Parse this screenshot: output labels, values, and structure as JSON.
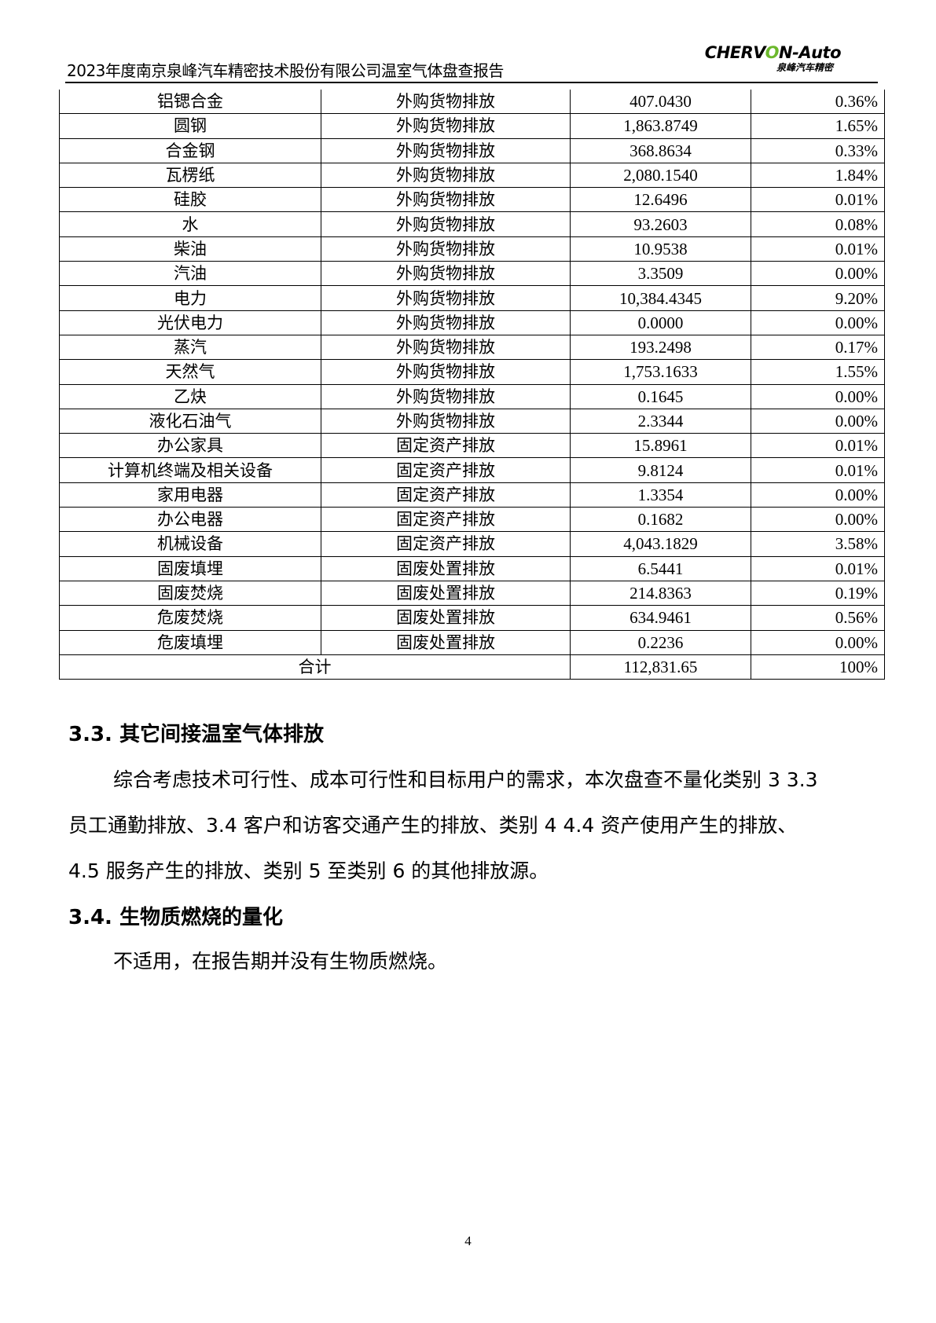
{
  "header": {
    "title": "2023年度南京泉峰汽车精密技术股份有限公司温室气体盘查报告",
    "logo_text": "CHERVON-Auto",
    "logo_subtext": "泉峰汽车精密"
  },
  "table": {
    "rows": [
      [
        "铝锶合金",
        "外购货物排放",
        "407.0430",
        "0.36%"
      ],
      [
        "圆钢",
        "外购货物排放",
        "1,863.8749",
        "1.65%"
      ],
      [
        "合金钢",
        "外购货物排放",
        "368.8634",
        "0.33%"
      ],
      [
        "瓦楞纸",
        "外购货物排放",
        "2,080.1540",
        "1.84%"
      ],
      [
        "硅胶",
        "外购货物排放",
        "12.6496",
        "0.01%"
      ],
      [
        "水",
        "外购货物排放",
        "93.2603",
        "0.08%"
      ],
      [
        "柴油",
        "外购货物排放",
        "10.9538",
        "0.01%"
      ],
      [
        "汽油",
        "外购货物排放",
        "3.3509",
        "0.00%"
      ],
      [
        "电力",
        "外购货物排放",
        "10,384.4345",
        "9.20%"
      ],
      [
        "光伏电力",
        "外购货物排放",
        "0.0000",
        "0.00%"
      ],
      [
        "蒸汽",
        "外购货物排放",
        "193.2498",
        "0.17%"
      ],
      [
        "天然气",
        "外购货物排放",
        "1,753.1633",
        "1.55%"
      ],
      [
        "乙炔",
        "外购货物排放",
        "0.1645",
        "0.00%"
      ],
      [
        "液化石油气",
        "外购货物排放",
        "2.3344",
        "0.00%"
      ],
      [
        "办公家具",
        "固定资产排放",
        "15.8961",
        "0.01%"
      ],
      [
        "计算机终端及相关设备",
        "固定资产排放",
        "9.8124",
        "0.01%"
      ],
      [
        "家用电器",
        "固定资产排放",
        "1.3354",
        "0.00%"
      ],
      [
        "办公电器",
        "固定资产排放",
        "0.1682",
        "0.00%"
      ],
      [
        "机械设备",
        "固定资产排放",
        "4,043.1829",
        "3.58%"
      ],
      [
        "固废填埋",
        "固废处置排放",
        "6.5441",
        "0.01%"
      ],
      [
        "固废焚烧",
        "固废处置排放",
        "214.8363",
        "0.19%"
      ],
      [
        "危废焚烧",
        "固废处置排放",
        "634.9461",
        "0.56%"
      ],
      [
        "危废填埋",
        "固废处置排放",
        "0.2236",
        "0.00%"
      ]
    ],
    "total": {
      "label": "合计",
      "value": "112,831.65",
      "percent": "100%"
    }
  },
  "sections": [
    {
      "heading": "3.3. 其它间接温室气体排放",
      "lines": [
        "综合考虑技术可行性、成本可行性和目标用户的需求，本次盘查不量化类别 3 3.3",
        "员工通勤排放、3.4 客户和访客交通产生的排放、类别 4  4.4 资产使用产生的排放、",
        "4.5 服务产生的排放、类别 5 至类别 6 的其他排放源。"
      ]
    },
    {
      "heading": "3.4. 生物质燃烧的量化",
      "lines": [
        "不适用，在报告期并没有生物质燃烧。"
      ]
    }
  ],
  "footer": {
    "page_number": "4"
  }
}
